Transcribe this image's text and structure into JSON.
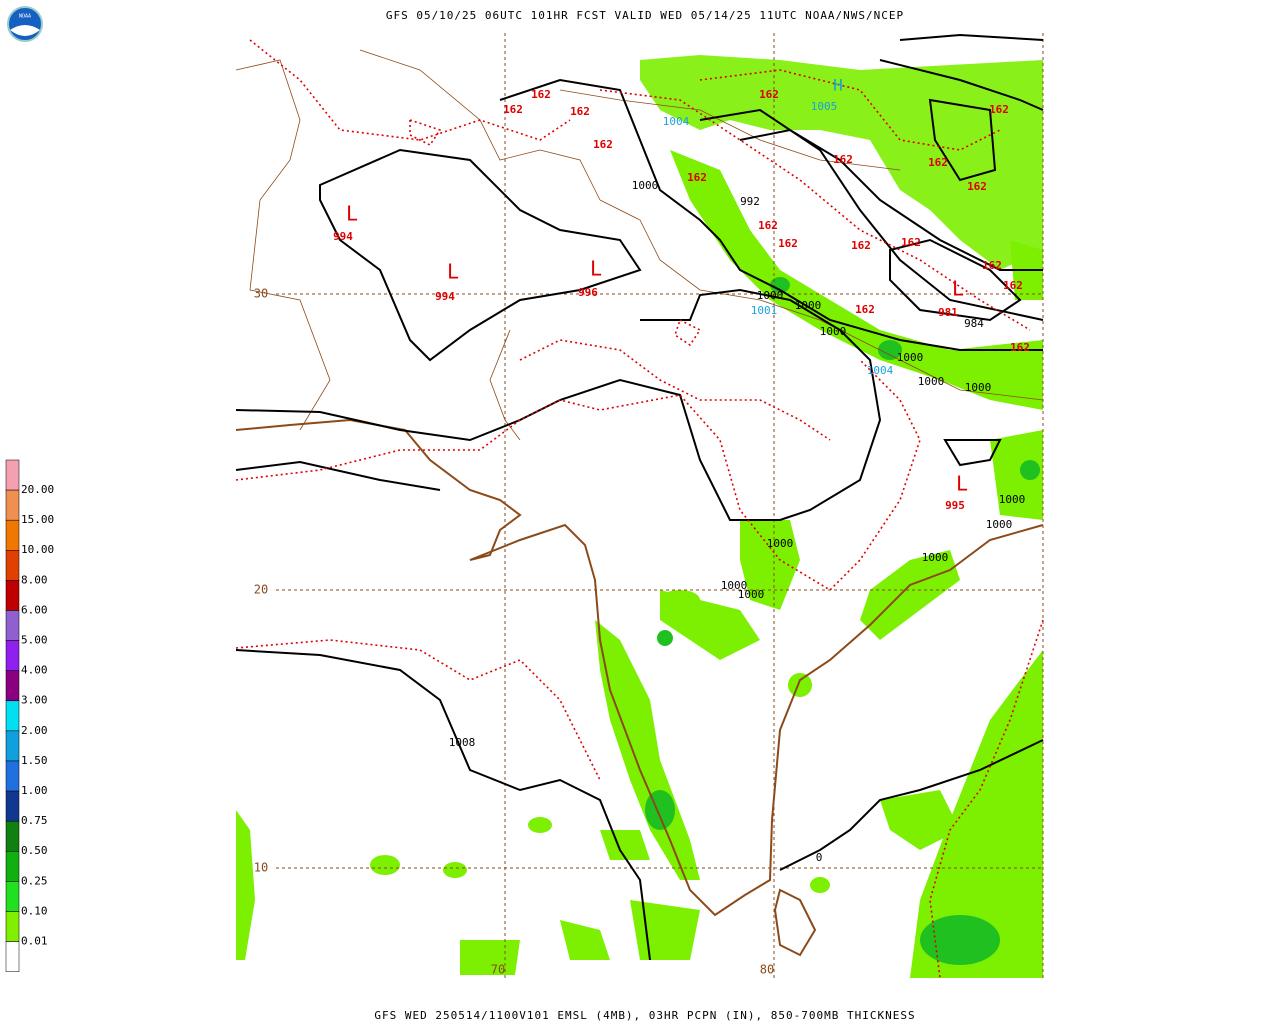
{
  "header": {
    "title": "GFS 05/10/25 06UTC 101HR FCST VALID WED 05/14/25 11UTC NOAA/NWS/NCEP",
    "logo": "NOAA"
  },
  "footer": {
    "caption": "GFS WED 250514/1100V101 EMSL (4MB), 03HR PCPN (IN), 850-700MB THICKNESS"
  },
  "legend": {
    "labels": [
      "20.00",
      "15.00",
      "10.00",
      "8.00",
      "6.00",
      "5.00",
      "4.00",
      "3.00",
      "2.00",
      "1.50",
      "1.00",
      "0.75",
      "0.50",
      "0.25",
      "0.10",
      "0.01"
    ]
  },
  "map": {
    "grid_labels": [
      "30",
      "20",
      "10",
      "70",
      "80"
    ],
    "labels": [
      "162",
      "162",
      "162",
      "162",
      "162",
      "162",
      "162",
      "162",
      "162",
      "162",
      "162",
      "162",
      "162",
      "162",
      "162",
      "162",
      "162",
      "162",
      "L",
      "L",
      "L",
      "L",
      "L",
      "994",
      "994",
      "996",
      "981",
      "995",
      "1000",
      "992",
      "1000",
      "1000",
      "1000",
      "984",
      "1000",
      "1000",
      "1000",
      "1000",
      "1000",
      "1000",
      "1000",
      "1000",
      "1000",
      "1008",
      "0",
      "H",
      "1004",
      "1005",
      "1001",
      "1004"
    ]
  }
}
